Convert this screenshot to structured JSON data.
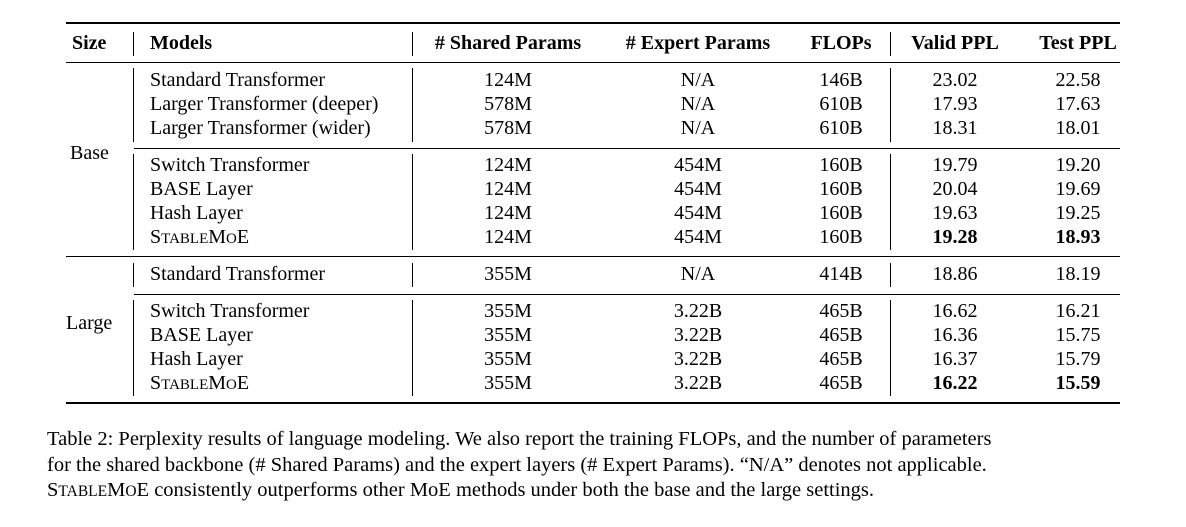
{
  "table": {
    "headers": {
      "size": "Size",
      "models": "Models",
      "shared_params": "# Shared Params",
      "expert_params": "# Expert Params",
      "flops": "FLOPs",
      "valid_ppl": "Valid PPL",
      "test_ppl": "Test PPL"
    },
    "size_labels": {
      "base": "Base",
      "large": "Large"
    },
    "rows": [
      {
        "model": "Standard Transformer",
        "shared": "124M",
        "expert": "N/A",
        "flops": "146B",
        "valid": "23.02",
        "test": "22.58"
      },
      {
        "model": "Larger Transformer (deeper)",
        "shared": "578M",
        "expert": "N/A",
        "flops": "610B",
        "valid": "17.93",
        "test": "17.63"
      },
      {
        "model": "Larger Transformer (wider)",
        "shared": "578M",
        "expert": "N/A",
        "flops": "610B",
        "valid": "18.31",
        "test": "18.01"
      },
      {
        "model": "Switch Transformer",
        "shared": "124M",
        "expert": "454M",
        "flops": "160B",
        "valid": "19.79",
        "test": "19.20"
      },
      {
        "model": "BASE Layer",
        "shared": "124M",
        "expert": "454M",
        "flops": "160B",
        "valid": "20.04",
        "test": "19.69"
      },
      {
        "model": "Hash Layer",
        "shared": "124M",
        "expert": "454M",
        "flops": "160B",
        "valid": "19.63",
        "test": "19.25"
      },
      {
        "model_sc": [
          "S",
          "TABLE",
          "M",
          "O",
          "E"
        ],
        "shared": "124M",
        "expert": "454M",
        "flops": "160B",
        "valid": "19.28",
        "test": "18.93",
        "bold_valid": true,
        "bold_test": true
      },
      {
        "model": "Standard Transformer",
        "shared": "355M",
        "expert": "N/A",
        "flops": "414B",
        "valid": "18.86",
        "test": "18.19"
      },
      {
        "model": "Switch Transformer",
        "shared": "355M",
        "expert": "3.22B",
        "flops": "465B",
        "valid": "16.62",
        "test": "16.21"
      },
      {
        "model": "BASE Layer",
        "shared": "355M",
        "expert": "3.22B",
        "flops": "465B",
        "valid": "16.36",
        "test": "15.75"
      },
      {
        "model": "Hash Layer",
        "shared": "355M",
        "expert": "3.22B",
        "flops": "465B",
        "valid": "16.37",
        "test": "15.79"
      },
      {
        "model_sc": [
          "S",
          "TABLE",
          "M",
          "O",
          "E"
        ],
        "shared": "355M",
        "expert": "3.22B",
        "flops": "465B",
        "valid": "16.22",
        "test": "15.59",
        "bold_valid": true,
        "bold_test": true
      }
    ]
  },
  "caption": {
    "line1": "Table 2: Perplexity results of language modeling. We also report the training FLOPs, and the number of parameters",
    "line2": "for the shared backbone (# Shared Params) and the expert layers (# Expert Params). “N/A” denotes not applicable.",
    "line3_sc": [
      "S",
      "TABLE",
      "M",
      "O",
      "E"
    ],
    "line3_rest": " consistently outperforms other MoE methods under both the base and the large settings."
  }
}
